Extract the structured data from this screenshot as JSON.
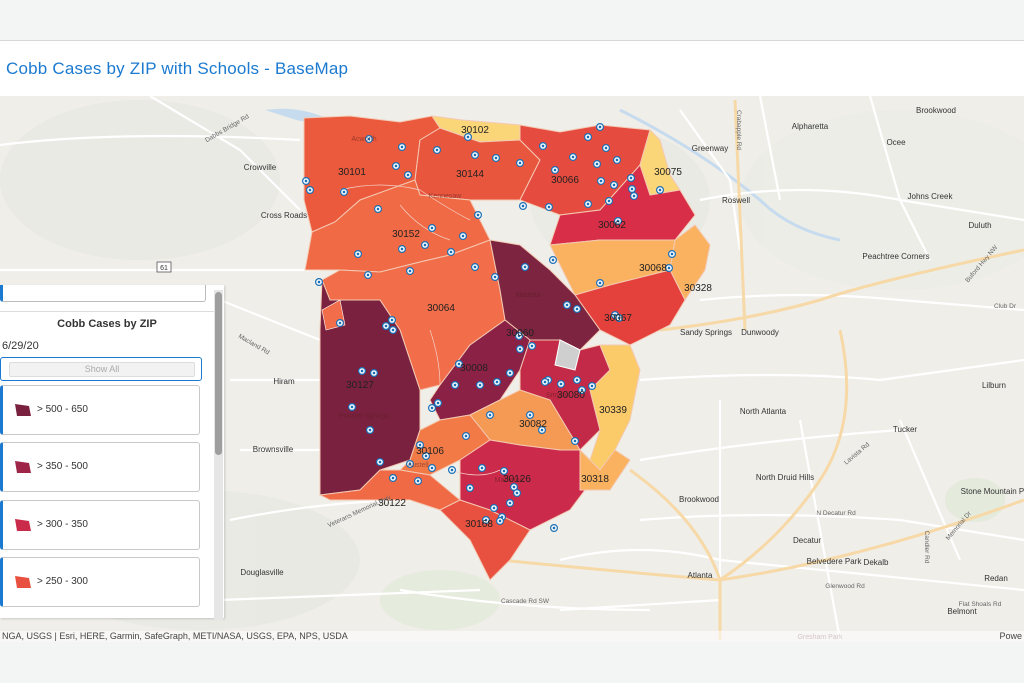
{
  "app": {
    "title": "Cobb Cases by ZIP with Schools - BaseMap"
  },
  "legend_panel": {
    "title": "Cobb Cases by ZIP",
    "date": "6/29/20",
    "show_all_label": "Show All",
    "classes": [
      {
        "label": "> 500 - 650",
        "color": "#7b2140"
      },
      {
        "label": "> 350 - 500",
        "color": "#9e2448"
      },
      {
        "label": "> 300 - 350",
        "color": "#cb2b4a"
      },
      {
        "label": "> 250 - 300",
        "color": "#e8503f"
      }
    ]
  },
  "attribution": {
    "sources": "NGA, USGS | Esri, HERE, Garmin, SafeGraph, METI/NASA, USGS, EPA, NPS, USDA",
    "powered_by": "Powe"
  },
  "zip_labels": [
    "30102",
    "30101",
    "30144",
    "30066",
    "30075",
    "30062",
    "30152",
    "30068",
    "30328",
    "30064",
    "30067",
    "30060",
    "30127",
    "30008",
    "30080",
    "30339",
    "30082",
    "30106",
    "30126",
    "30318",
    "30122",
    "30168"
  ],
  "place_labels": [
    "Alpharetta",
    "Brookwood",
    "Ocee",
    "Greenway",
    "Roswell",
    "Johns Creek",
    "Duluth",
    "Crowville",
    "Cross Roads",
    "Peachtree Corners",
    "Sandy Springs",
    "Dunwoody",
    "Hiram",
    "North Atlanta",
    "Lilburn",
    "Brownsville",
    "Tucker",
    "North Druid Hills",
    "Stone Mountain Park",
    "Brookwood",
    "Decatur",
    "Belvedere Park",
    "Dekalb",
    "Douglasville",
    "Atlanta",
    "Redan",
    "Belmont",
    "Marietta",
    "Powder Springs",
    "Austell",
    "Mableton",
    "Acworth",
    "Kennesaw",
    "Smyrna",
    "Gresham Park"
  ],
  "road_labels": [
    "Dabbs Bridge Rd",
    "Macland Rd",
    "Veterans Memorial Hwy",
    "Cascade Rd SW",
    "Buford Hwy NW",
    "Lavista Rd",
    "N Decatur Rd",
    "Memorial Dr",
    "Glenwood Rd",
    "Candler Rd",
    "Crabapple Rd",
    "Club Dr",
    "Flat Shoals Rd"
  ],
  "highway_shield": "61",
  "icons": {
    "school": "school-icon"
  }
}
